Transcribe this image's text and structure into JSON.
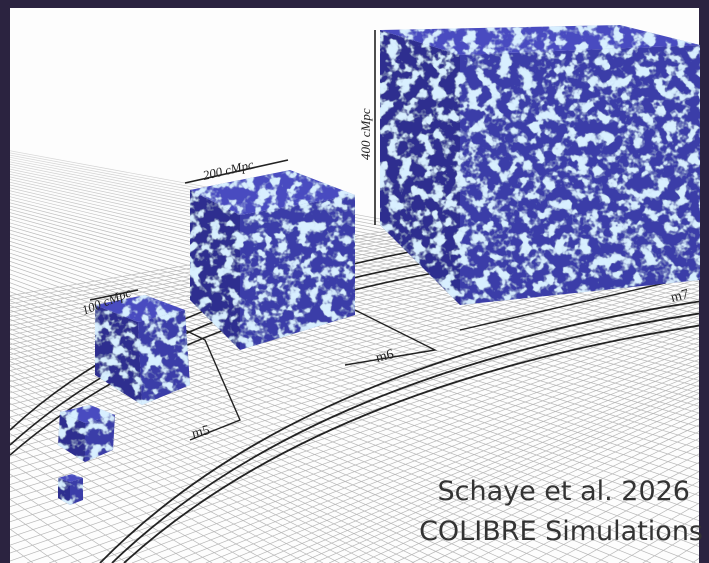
{
  "labels": {
    "box_100": "100 cMpc",
    "box_200": "200 cMpc",
    "box_400": "400 cMpc",
    "m5": "m5",
    "m6": "m6",
    "m7": "m7"
  },
  "caption": {
    "line1": "Schaye et al. 2026",
    "line2": "COLIBRE Simulations"
  }
}
